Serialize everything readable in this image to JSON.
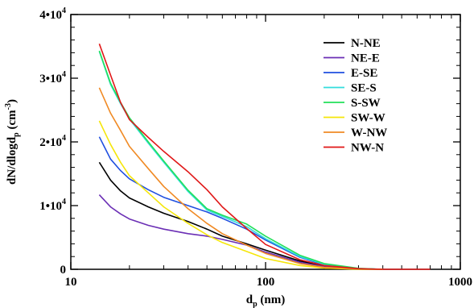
{
  "chart_data": {
    "type": "line",
    "xscale": "log",
    "xlim": [
      10,
      1000
    ],
    "ylim": [
      0,
      40000
    ],
    "x_ticks": [
      10,
      100,
      1000
    ],
    "x_tick_labels": [
      "10",
      "100",
      "1000"
    ],
    "y_ticks": [
      0,
      10000,
      20000,
      30000,
      40000
    ],
    "y_tick_labels": [
      {
        "base": "0",
        "exp": ""
      },
      {
        "base": "1•10",
        "exp": "4"
      },
      {
        "base": "2•10",
        "exp": "4"
      },
      {
        "base": "3•10",
        "exp": "4"
      },
      {
        "base": "4•10",
        "exp": "4"
      }
    ],
    "xlabel": {
      "main": "d",
      "sub": "p",
      "rest": " (nm)"
    },
    "ylabel": {
      "a": "dN/dlogd",
      "sub": "p",
      "b": " (cm",
      "sup": "-3",
      "c": ")"
    },
    "legend_position": "top-right",
    "grid": false,
    "series": [
      {
        "name": "N-NE",
        "color": "#000000",
        "points": [
          [
            14,
            16800
          ],
          [
            16,
            14000
          ],
          [
            18,
            12300
          ],
          [
            20,
            11200
          ],
          [
            25,
            9800
          ],
          [
            30,
            8800
          ],
          [
            40,
            7500
          ],
          [
            50,
            6300
          ],
          [
            60,
            5200
          ],
          [
            80,
            4000
          ],
          [
            100,
            3000
          ],
          [
            150,
            1300
          ],
          [
            200,
            500
          ],
          [
            300,
            100
          ],
          [
            400,
            0
          ]
        ]
      },
      {
        "name": "NE-E",
        "color": "#6b2fb5",
        "points": [
          [
            14,
            11700
          ],
          [
            16,
            9800
          ],
          [
            18,
            8700
          ],
          [
            20,
            7900
          ],
          [
            25,
            6900
          ],
          [
            30,
            6300
          ],
          [
            40,
            5600
          ],
          [
            50,
            5200
          ],
          [
            60,
            4700
          ],
          [
            80,
            3800
          ],
          [
            100,
            2700
          ],
          [
            150,
            1100
          ],
          [
            200,
            400
          ],
          [
            300,
            50
          ],
          [
            400,
            0
          ]
        ]
      },
      {
        "name": "E-SE",
        "color": "#1f4fe0",
        "points": [
          [
            14,
            20800
          ],
          [
            16,
            17300
          ],
          [
            18,
            15500
          ],
          [
            20,
            14200
          ],
          [
            25,
            12500
          ],
          [
            30,
            11300
          ],
          [
            40,
            10000
          ],
          [
            50,
            9000
          ],
          [
            60,
            8000
          ],
          [
            80,
            6300
          ],
          [
            100,
            4600
          ],
          [
            150,
            1900
          ],
          [
            200,
            700
          ],
          [
            300,
            100
          ],
          [
            400,
            0
          ]
        ]
      },
      {
        "name": "SE-S",
        "color": "#33dddd",
        "points": [
          [
            14,
            34200
          ],
          [
            16,
            29000
          ],
          [
            18,
            26000
          ],
          [
            20,
            23600
          ],
          [
            25,
            19800
          ],
          [
            30,
            16800
          ],
          [
            40,
            12200
          ],
          [
            50,
            9300
          ],
          [
            60,
            8300
          ],
          [
            80,
            6700
          ],
          [
            100,
            4800
          ],
          [
            150,
            2000
          ],
          [
            200,
            800
          ],
          [
            300,
            100
          ],
          [
            400,
            0
          ]
        ]
      },
      {
        "name": "S-SW",
        "color": "#22e05a",
        "points": [
          [
            14,
            34300
          ],
          [
            16,
            29200
          ],
          [
            18,
            26200
          ],
          [
            20,
            23800
          ],
          [
            25,
            20000
          ],
          [
            30,
            17000
          ],
          [
            40,
            12400
          ],
          [
            50,
            9500
          ],
          [
            60,
            8500
          ],
          [
            80,
            7100
          ],
          [
            100,
            5200
          ],
          [
            150,
            2200
          ],
          [
            200,
            900
          ],
          [
            300,
            150
          ],
          [
            400,
            0
          ]
        ]
      },
      {
        "name": "SW-W",
        "color": "#f5e60a",
        "points": [
          [
            14,
            23300
          ],
          [
            16,
            19600
          ],
          [
            18,
            16800
          ],
          [
            20,
            14700
          ],
          [
            25,
            12000
          ],
          [
            30,
            9800
          ],
          [
            40,
            7200
          ],
          [
            50,
            5400
          ],
          [
            60,
            4200
          ],
          [
            80,
            2800
          ],
          [
            100,
            1700
          ],
          [
            150,
            600
          ],
          [
            200,
            200
          ],
          [
            300,
            0
          ],
          [
            400,
            0
          ]
        ]
      },
      {
        "name": "W-NW",
        "color": "#f08a24",
        "points": [
          [
            14,
            28500
          ],
          [
            16,
            24500
          ],
          [
            18,
            21800
          ],
          [
            20,
            19300
          ],
          [
            25,
            15800
          ],
          [
            30,
            13000
          ],
          [
            40,
            9500
          ],
          [
            50,
            7200
          ],
          [
            60,
            5600
          ],
          [
            80,
            3800
          ],
          [
            100,
            2500
          ],
          [
            150,
            900
          ],
          [
            200,
            300
          ],
          [
            300,
            50
          ],
          [
            400,
            0
          ]
        ]
      },
      {
        "name": "NW-N",
        "color": "#e01818",
        "points": [
          [
            14,
            35400
          ],
          [
            16,
            30500
          ],
          [
            18,
            26200
          ],
          [
            20,
            23500
          ],
          [
            25,
            20700
          ],
          [
            30,
            18500
          ],
          [
            40,
            15300
          ],
          [
            50,
            12500
          ],
          [
            60,
            9800
          ],
          [
            80,
            6400
          ],
          [
            100,
            3900
          ],
          [
            150,
            1500
          ],
          [
            200,
            600
          ],
          [
            300,
            100
          ],
          [
            400,
            0
          ],
          [
            700,
            0
          ]
        ]
      }
    ]
  }
}
